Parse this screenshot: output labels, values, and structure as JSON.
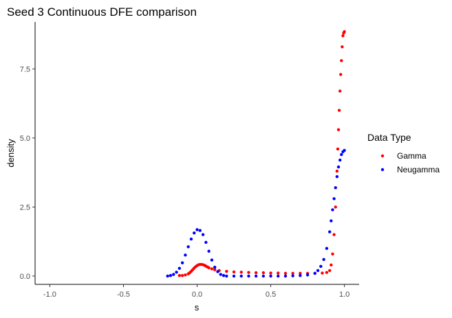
{
  "chart_data": {
    "type": "scatter",
    "title": "Seed 3 Continuous DFE comparison",
    "xlabel": "s",
    "ylabel": "density",
    "xlim": [
      -1.1,
      1.1
    ],
    "ylim": [
      -0.3,
      9.2
    ],
    "x_ticks": [
      -1.0,
      -0.5,
      0.0,
      0.5,
      1.0
    ],
    "x_tick_labels": [
      "-1.0",
      "-0.5",
      "0.0",
      "0.5",
      "1.0"
    ],
    "y_ticks": [
      0.0,
      2.5,
      5.0,
      7.5
    ],
    "y_tick_labels": [
      "0.0",
      "2.5",
      "5.0",
      "7.5"
    ],
    "grid": false,
    "legend": {
      "title": "Data Type",
      "position": "right"
    },
    "series": [
      {
        "name": "Gamma",
        "color": "#ff0000",
        "x": [
          -0.12,
          -0.1,
          -0.08,
          -0.06,
          -0.05,
          -0.04,
          -0.03,
          -0.02,
          -0.01,
          0.0,
          0.01,
          0.02,
          0.03,
          0.04,
          0.05,
          0.06,
          0.07,
          0.08,
          0.1,
          0.12,
          0.15,
          0.2,
          0.25,
          0.3,
          0.35,
          0.4,
          0.45,
          0.5,
          0.55,
          0.6,
          0.65,
          0.7,
          0.75,
          0.8,
          0.85,
          0.88,
          0.9,
          0.91,
          0.92,
          0.93,
          0.94,
          0.95,
          0.955,
          0.96,
          0.965,
          0.97,
          0.975,
          0.98,
          0.985,
          0.99,
          0.995,
          1.0
        ],
        "y": [
          0.02,
          0.02,
          0.04,
          0.08,
          0.12,
          0.17,
          0.23,
          0.29,
          0.34,
          0.38,
          0.41,
          0.42,
          0.42,
          0.41,
          0.39,
          0.36,
          0.33,
          0.3,
          0.26,
          0.23,
          0.2,
          0.17,
          0.15,
          0.14,
          0.13,
          0.12,
          0.12,
          0.11,
          0.11,
          0.1,
          0.1,
          0.1,
          0.1,
          0.1,
          0.11,
          0.13,
          0.2,
          0.4,
          0.8,
          1.5,
          2.5,
          3.8,
          4.6,
          5.3,
          6.0,
          6.7,
          7.3,
          7.8,
          8.3,
          8.7,
          8.8,
          8.85
        ]
      },
      {
        "name": "Neugamma",
        "color": "#0000ff",
        "x": [
          -0.2,
          -0.18,
          -0.16,
          -0.14,
          -0.12,
          -0.1,
          -0.08,
          -0.06,
          -0.04,
          -0.02,
          0.0,
          0.02,
          0.04,
          0.06,
          0.08,
          0.1,
          0.12,
          0.14,
          0.16,
          0.18,
          0.2,
          0.25,
          0.3,
          0.35,
          0.4,
          0.45,
          0.5,
          0.55,
          0.6,
          0.65,
          0.7,
          0.75,
          0.8,
          0.82,
          0.84,
          0.86,
          0.88,
          0.9,
          0.91,
          0.92,
          0.93,
          0.94,
          0.95,
          0.96,
          0.97,
          0.98,
          0.99,
          1.0
        ],
        "y": [
          0.0,
          0.02,
          0.06,
          0.14,
          0.28,
          0.48,
          0.76,
          1.06,
          1.34,
          1.56,
          1.68,
          1.65,
          1.5,
          1.22,
          0.9,
          0.58,
          0.32,
          0.16,
          0.06,
          0.02,
          0.0,
          0.0,
          0.0,
          0.0,
          0.0,
          0.0,
          0.0,
          0.0,
          0.0,
          0.01,
          0.02,
          0.04,
          0.1,
          0.2,
          0.35,
          0.6,
          1.0,
          1.6,
          2.0,
          2.4,
          2.8,
          3.2,
          3.6,
          3.95,
          4.2,
          4.4,
          4.5,
          4.55
        ]
      }
    ]
  }
}
